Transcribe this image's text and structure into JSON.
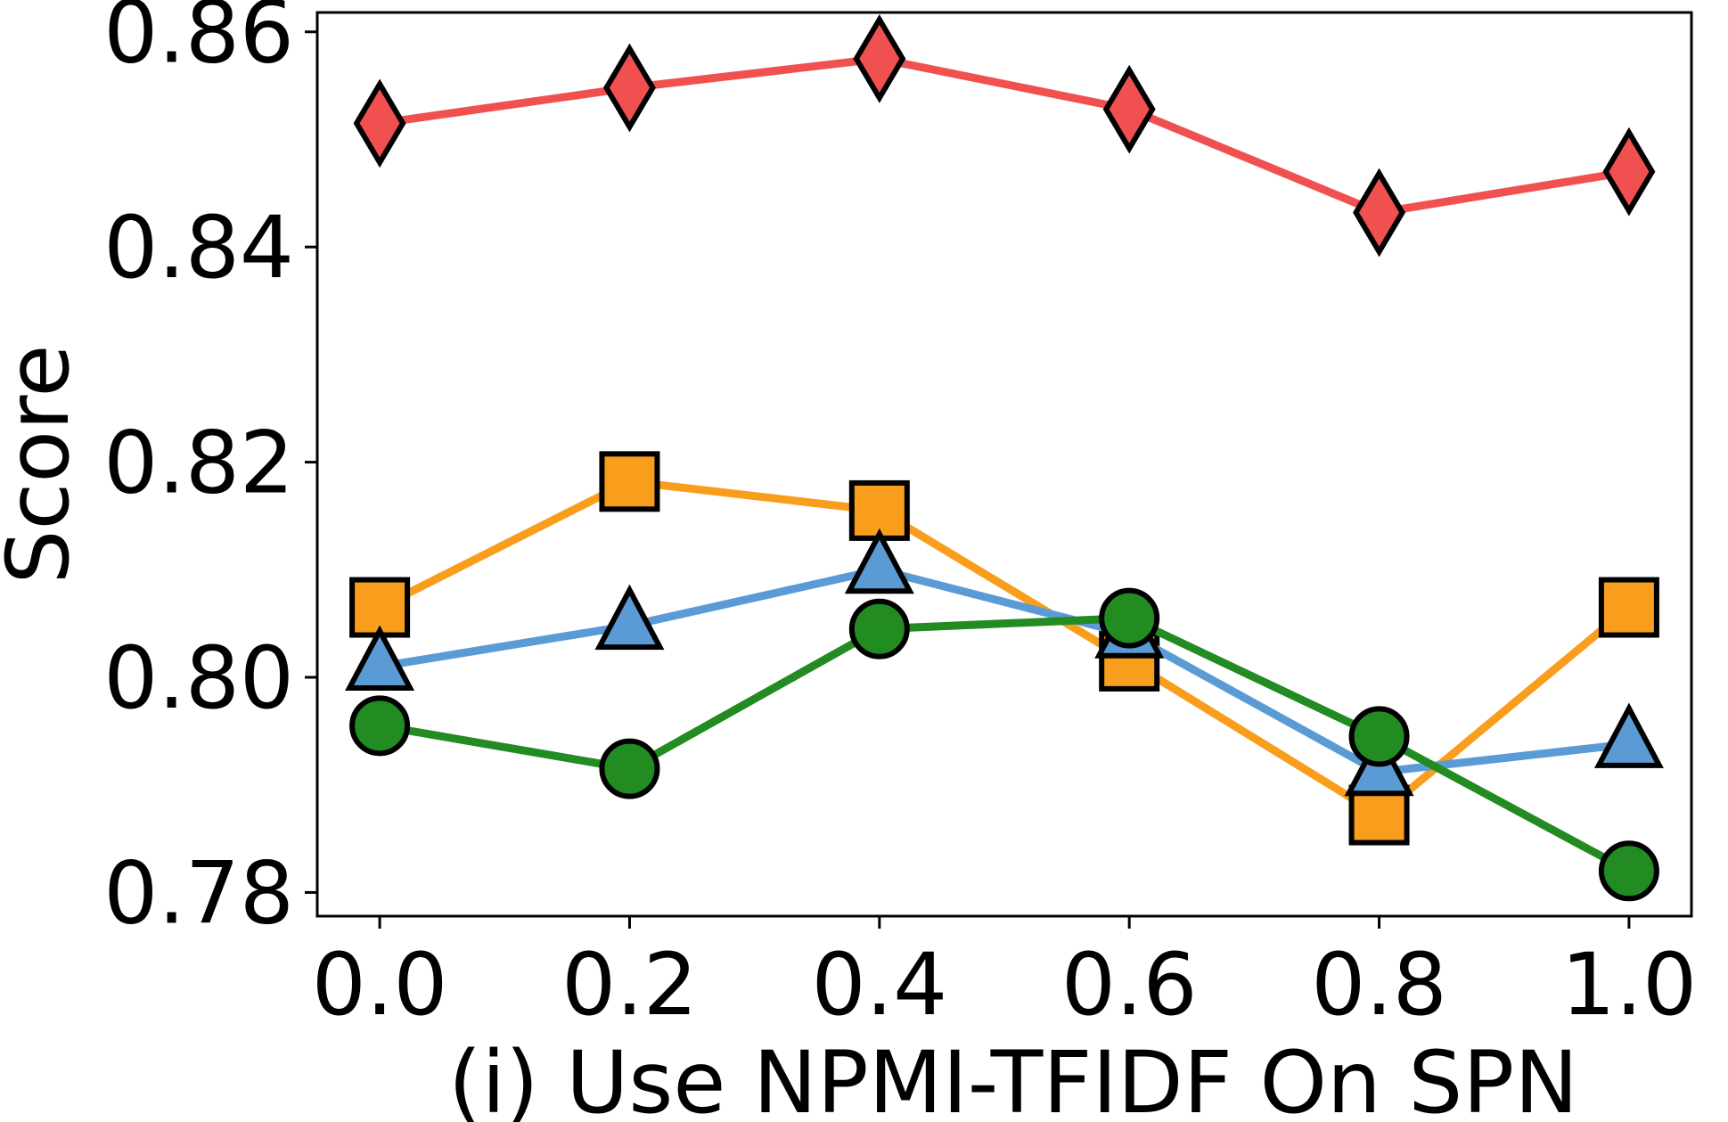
{
  "chart_data": {
    "type": "line",
    "title": "",
    "xlabel": "(i) Use NPMI-TFIDF On SPN",
    "ylabel": "Score",
    "x": [
      0.0,
      0.2,
      0.4,
      0.6,
      0.8,
      1.0
    ],
    "x_tick_labels": [
      "0.0",
      "0.2",
      "0.4",
      "0.6",
      "0.8",
      "1.0"
    ],
    "y_ticks": [
      0.78,
      0.8,
      0.82,
      0.84,
      0.86
    ],
    "y_tick_labels": [
      "0.78",
      "0.80",
      "0.82",
      "0.84",
      "0.86"
    ],
    "xlim": [
      -0.05,
      1.05
    ],
    "ylim": [
      0.7778,
      0.8618
    ],
    "grid": false,
    "series": [
      {
        "name": "red-diamond",
        "marker": "diamond",
        "color": "#f05050",
        "values": [
          0.8515,
          0.8548,
          0.8575,
          0.8528,
          0.8432,
          0.847
        ]
      },
      {
        "name": "orange-square",
        "marker": "square",
        "color": "#f99d1c",
        "values": [
          0.8065,
          0.8182,
          0.8155,
          0.8015,
          0.7872,
          0.8065
        ]
      },
      {
        "name": "blue-triangle",
        "marker": "triangle",
        "color": "#5b9bd5",
        "values": [
          0.801,
          0.8048,
          0.81,
          0.804,
          0.7912,
          0.7938
        ]
      },
      {
        "name": "green-circle",
        "marker": "circle",
        "color": "#228b22",
        "values": [
          0.7955,
          0.7915,
          0.8045,
          0.8055,
          0.7945,
          0.782
        ]
      }
    ]
  }
}
